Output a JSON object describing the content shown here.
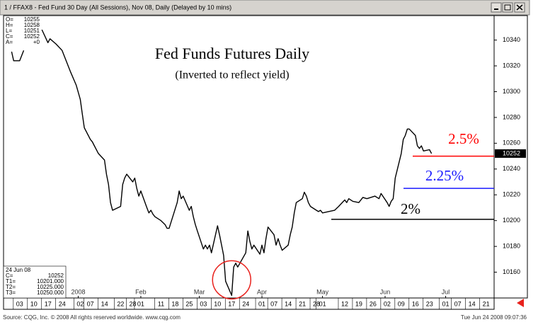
{
  "window_title": "1 / FFAX8 - Fed Fund 30 Day (All Sessions), Nov 08, Daily (Delayed by 10 mins)",
  "chart_data": {
    "type": "line",
    "title": "Fed Funds Futures Daily",
    "subtitle": "(Inverted to reflect yield)",
    "x": [
      "2007-11-29",
      "2007-11-30",
      "2007-12-03",
      "2007-12-05",
      "2007-12-07",
      "2007-12-14",
      "2007-12-17",
      "2007-12-18",
      "2007-12-21",
      "2007-12-24",
      "2007-12-26",
      "2007-12-28",
      "2007-12-31",
      "2008-01-02",
      "2008-01-03",
      "2008-01-04",
      "2008-01-07",
      "2008-01-08",
      "2008-01-09",
      "2008-01-11",
      "2008-01-14",
      "2008-01-15",
      "2008-01-16",
      "2008-01-17",
      "2008-01-18",
      "2008-01-22",
      "2008-01-23",
      "2008-01-24",
      "2008-01-25",
      "2008-01-28",
      "2008-01-29",
      "2008-01-30",
      "2008-01-31",
      "2008-02-01",
      "2008-02-04",
      "2008-02-05",
      "2008-02-06",
      "2008-02-07",
      "2008-02-08",
      "2008-02-11",
      "2008-02-13",
      "2008-02-14",
      "2008-02-15",
      "2008-02-19",
      "2008-02-20",
      "2008-02-21",
      "2008-02-22",
      "2008-02-25",
      "2008-02-26",
      "2008-02-27",
      "2008-02-28",
      "2008-02-29",
      "2008-03-03",
      "2008-03-04",
      "2008-03-05",
      "2008-03-06",
      "2008-03-07",
      "2008-03-10",
      "2008-03-11",
      "2008-03-12",
      "2008-03-13",
      "2008-03-14",
      "2008-03-17",
      "2008-03-18",
      "2008-03-19",
      "2008-03-20",
      "2008-03-24",
      "2008-03-25",
      "2008-03-26",
      "2008-03-27",
      "2008-03-28",
      "2008-03-31",
      "2008-04-01",
      "2008-04-02",
      "2008-04-03",
      "2008-04-04",
      "2008-04-07",
      "2008-04-08",
      "2008-04-09",
      "2008-04-10",
      "2008-04-11",
      "2008-04-14",
      "2008-04-15",
      "2008-04-16",
      "2008-04-17",
      "2008-04-18",
      "2008-04-21",
      "2008-04-22",
      "2008-04-23",
      "2008-04-24",
      "2008-04-25",
      "2008-04-28",
      "2008-04-29",
      "2008-04-30",
      "2008-05-01",
      "2008-05-07",
      "2008-05-09",
      "2008-05-12",
      "2008-05-13",
      "2008-05-14",
      "2008-05-16",
      "2008-05-19",
      "2008-05-21",
      "2008-05-23",
      "2008-05-27",
      "2008-05-29",
      "2008-05-30",
      "2008-06-02",
      "2008-06-03",
      "2008-06-04",
      "2008-06-05",
      "2008-06-06",
      "2008-06-09",
      "2008-06-10",
      "2008-06-11",
      "2008-06-12",
      "2008-06-13",
      "2008-06-16",
      "2008-06-17",
      "2008-06-18",
      "2008-06-19",
      "2008-06-20",
      "2008-06-23",
      "2008-06-24"
    ],
    "series": [
      {
        "color": "#000000",
        "values": [
          10331,
          10324,
          10324,
          10332,
          null,
          10348,
          10338,
          10341,
          10337,
          10332,
          10324,
          10316,
          10305,
          10294,
          10283,
          10272,
          10263,
          10261,
          10258,
          10252,
          10247,
          10236,
          10228,
          10214,
          10208,
          10211,
          10228,
          10233,
          10236,
          10230,
          10233,
          10225,
          10219,
          10223,
          10210,
          10206,
          10208,
          10205,
          10203,
          10200,
          10197,
          10194,
          10194,
          10214,
          10223,
          10217,
          10219,
          10208,
          10211,
          10203,
          10197,
          10192,
          10178,
          10181,
          10178,
          10181,
          10175,
          10196,
          10189,
          10181,
          10173,
          10153,
          10142,
          10164,
          10167,
          10164,
          10175,
          10192,
          10184,
          10178,
          10181,
          10174,
          10181,
          10175,
          10186,
          10195,
          10189,
          10181,
          10186,
          10181,
          10177,
          10181,
          10189,
          10195,
          10206,
          10214,
          10217,
          10222,
          10219,
          10214,
          10211,
          10208,
          10207,
          10208,
          10206,
          10208,
          10211,
          10216,
          10214,
          10217,
          10215,
          10214,
          10218,
          10217,
          10219,
          10217,
          10221,
          10214,
          10211,
          10215,
          10217,
          10233,
          10252,
          10263,
          10266,
          10271,
          10271,
          10266,
          10258,
          10256,
          10258,
          10254,
          10255,
          10252
        ]
      }
    ],
    "xlim": [
      "2007-11-25",
      "2008-07-25"
    ],
    "xticks": [
      {
        "value": "2007-12-03",
        "label": "03"
      },
      {
        "value": "2007-12-10",
        "label": "10"
      },
      {
        "value": "2007-12-17",
        "label": "17"
      },
      {
        "value": "2007-12-24",
        "label": "24"
      },
      {
        "value": "2008-01-02",
        "label": "02"
      },
      {
        "value": "2008-01-07",
        "label": "07"
      },
      {
        "value": "2008-01-14",
        "label": "14"
      },
      {
        "value": "2008-01-22",
        "label": "22"
      },
      {
        "value": "2008-01-28",
        "label": "28"
      },
      {
        "value": "2008-02-01",
        "label": "01"
      },
      {
        "value": "2008-02-11",
        "label": "11"
      },
      {
        "value": "2008-02-18",
        "label": "18"
      },
      {
        "value": "2008-02-25",
        "label": "25"
      },
      {
        "value": "2008-03-03",
        "label": "03"
      },
      {
        "value": "2008-03-10",
        "label": "10"
      },
      {
        "value": "2008-03-17",
        "label": "17"
      },
      {
        "value": "2008-03-24",
        "label": "24"
      },
      {
        "value": "2008-04-01",
        "label": "01"
      },
      {
        "value": "2008-04-07",
        "label": "07"
      },
      {
        "value": "2008-04-14",
        "label": "14"
      },
      {
        "value": "2008-04-21",
        "label": "21"
      },
      {
        "value": "2008-04-28",
        "label": "28"
      },
      {
        "value": "2008-05-01",
        "label": "01"
      },
      {
        "value": "2008-05-12",
        "label": "12"
      },
      {
        "value": "2008-05-19",
        "label": "19"
      },
      {
        "value": "2008-05-26",
        "label": "26"
      },
      {
        "value": "2008-06-02",
        "label": "02"
      },
      {
        "value": "2008-06-09",
        "label": "09"
      },
      {
        "value": "2008-06-16",
        "label": "16"
      },
      {
        "value": "2008-06-23",
        "label": "23"
      },
      {
        "value": "2008-07-01",
        "label": "01"
      },
      {
        "value": "2008-07-07",
        "label": "07"
      },
      {
        "value": "2008-07-14",
        "label": "14"
      },
      {
        "value": "2008-07-21",
        "label": "21"
      }
    ],
    "month_ticks": [
      {
        "value": "2008-01-01",
        "label": "2008"
      },
      {
        "value": "2008-02-01",
        "label": "Feb"
      },
      {
        "value": "2008-03-01",
        "label": "Mar"
      },
      {
        "value": "2008-04-01",
        "label": "Apr"
      },
      {
        "value": "2008-05-01",
        "label": "May"
      },
      {
        "value": "2008-06-01",
        "label": "Jun"
      },
      {
        "value": "2008-07-01",
        "label": "Jul"
      }
    ],
    "ylim": [
      10140,
      10359
    ],
    "yticks": [
      10160,
      10180,
      10200,
      10220,
      10240,
      10260,
      10280,
      10300,
      10320,
      10340
    ],
    "levels": [
      {
        "label": "2%",
        "value": 10201,
        "color": "#000000"
      },
      {
        "label": "2.25%",
        "value": 10225,
        "color": "#1a1aff"
      },
      {
        "label": "2.5%",
        "value": 10250,
        "color": "#ff0000"
      }
    ],
    "quote_box": [
      [
        "O=",
        "10255"
      ],
      [
        "H=",
        "10258"
      ],
      [
        "L=",
        "10251"
      ],
      [
        "C=",
        "10252"
      ],
      [
        "A=",
        "+0"
      ]
    ],
    "info_box": {
      "date": "24 Jun 08",
      "rows": [
        [
          "C=",
          "10252"
        ],
        [
          "T1=",
          "10201.000"
        ],
        [
          "T2=",
          "10225.000"
        ],
        [
          "T3=",
          "10250.000"
        ]
      ]
    }
  },
  "footer": {
    "source": "Source: CQG, Inc. © 2008 All rights reserved worldwide. www.cqg.com",
    "timestamp": "Tue Jun 24 2008 09:07:36"
  }
}
